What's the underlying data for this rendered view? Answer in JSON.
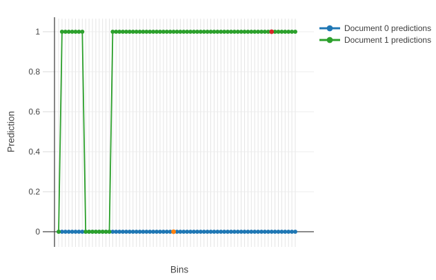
{
  "chart_data": {
    "type": "line",
    "title": "",
    "xlabel": "Bins",
    "ylabel": "Prediction",
    "legend_position": "top-right",
    "grid": true,
    "background_color": "#ffffff",
    "axis_color": "#444444",
    "vertical_gridline_color": "#e4e4e4",
    "horizontal_gridline_color": "#ececec",
    "x_axis": {
      "label": "Bins",
      "bin_count": 71,
      "tick_labels_shown": false
    },
    "ylim": [
      -0.075,
      1.075
    ],
    "yticks": [
      {
        "label": "0",
        "value": 0
      },
      {
        "label": "0.2",
        "value": 0.2
      },
      {
        "label": "0.4",
        "value": 0.4
      },
      {
        "label": "0.6",
        "value": 0.6
      },
      {
        "label": "0.8",
        "value": 0.8
      },
      {
        "label": "1",
        "value": 1
      }
    ],
    "series": [
      {
        "name": "Document 0 predictions",
        "color": "#1f77b4",
        "marker": "circle",
        "values": [
          0,
          0,
          0,
          0,
          0,
          0,
          0,
          0,
          0,
          0,
          0,
          0,
          0,
          0,
          0,
          0,
          0,
          0,
          0,
          0,
          0,
          0,
          0,
          0,
          0,
          0,
          0,
          0,
          0,
          0,
          0,
          0,
          0,
          0,
          0,
          0,
          0,
          0,
          0,
          0,
          0,
          0,
          0,
          0,
          0,
          0,
          0,
          0,
          0,
          0,
          0,
          0,
          0,
          0,
          0,
          0,
          0,
          0,
          0,
          0,
          0,
          0,
          0,
          0,
          0,
          0,
          0,
          0,
          0,
          0,
          0
        ]
      },
      {
        "name": "Document 1 predictions",
        "color": "#2ca02c",
        "marker": "circle",
        "values": [
          0,
          1,
          1,
          1,
          1,
          1,
          1,
          1,
          0,
          0,
          0,
          0,
          0,
          0,
          0,
          0,
          1,
          1,
          1,
          1,
          1,
          1,
          1,
          1,
          1,
          1,
          1,
          1,
          1,
          1,
          1,
          1,
          1,
          1,
          1,
          1,
          1,
          1,
          1,
          1,
          1,
          1,
          1,
          1,
          1,
          1,
          1,
          1,
          1,
          1,
          1,
          1,
          1,
          1,
          1,
          1,
          1,
          1,
          1,
          1,
          1,
          1,
          1,
          1,
          1,
          1,
          1,
          1,
          1,
          1,
          1
        ]
      }
    ],
    "highlight_points": [
      {
        "series": "Document 0 predictions",
        "series_index": 0,
        "bin": 34,
        "value": 0,
        "color": "#ff7f0e"
      },
      {
        "series": "Document 1 predictions",
        "series_index": 1,
        "bin": 63,
        "value": 1,
        "color": "#d62728"
      }
    ]
  }
}
